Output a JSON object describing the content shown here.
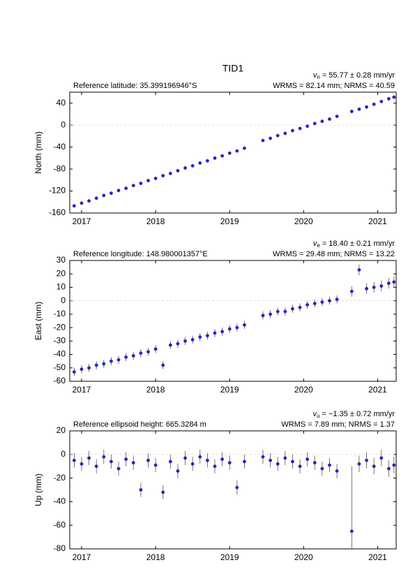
{
  "chart_data": [
    {
      "type": "scatter",
      "title": "TID1",
      "ylabel": "North (mm)",
      "reference": "Reference latitude: 35.399196946°S",
      "rate": {
        "symbol": "v",
        "subscript": "n",
        "text": " = 55.77 ± 0.28 mm/yr"
      },
      "stats": "WRMS = 82.14 mm; NRMS = 40.59",
      "color": "#2020ff",
      "error_color": "#555555",
      "zero_line": true,
      "xlim": [
        2016.84,
        2021.25
      ],
      "xticks": [
        2017,
        2018,
        2019,
        2020,
        2021
      ],
      "ylim": [
        -160,
        60
      ],
      "yticks": [
        -160,
        -120,
        -80,
        -40,
        0,
        40
      ],
      "x": [
        2016.9,
        2017.0,
        2017.1,
        2017.2,
        2017.3,
        2017.4,
        2017.5,
        2017.6,
        2017.7,
        2017.8,
        2017.9,
        2018.0,
        2018.1,
        2018.2,
        2018.3,
        2018.4,
        2018.5,
        2018.6,
        2018.7,
        2018.8,
        2018.9,
        2019.0,
        2019.1,
        2019.2,
        2019.45,
        2019.55,
        2019.65,
        2019.75,
        2019.85,
        2019.95,
        2020.05,
        2020.15,
        2020.25,
        2020.35,
        2020.45,
        2020.65,
        2020.75,
        2020.85,
        2020.95,
        2021.05,
        2021.15,
        2021.22
      ],
      "values": [
        -147,
        -142,
        -138,
        -133,
        -128,
        -124,
        -119,
        -115,
        -110,
        -106,
        -101,
        -97,
        -92,
        -88,
        -83,
        -78,
        -74,
        -69,
        -65,
        -60,
        -56,
        -51,
        -47,
        -42,
        -28,
        -24,
        -19,
        -15,
        -10,
        -6,
        -2,
        3,
        7,
        11,
        16,
        25,
        29,
        33,
        38,
        43,
        48,
        51
      ],
      "errors": [
        2,
        2,
        2,
        2,
        2,
        2,
        2,
        2,
        2,
        2,
        2,
        2,
        2,
        2,
        2,
        2,
        2,
        2,
        2,
        2,
        2,
        2,
        2,
        2,
        2,
        2,
        2,
        2,
        2,
        2,
        2,
        2,
        2,
        2,
        2,
        3,
        3,
        3,
        3,
        3,
        3,
        3
      ]
    },
    {
      "type": "scatter",
      "ylabel": "East (mm)",
      "reference": "Reference longitude: 148.980001357°E",
      "rate": {
        "symbol": "v",
        "subscript": "e",
        "text": " = 18.40 ± 0.21 mm/yr"
      },
      "stats": "WRMS = 29.48 mm; NRMS = 13.22",
      "color": "#2020ff",
      "error_color": "#555555",
      "zero_line": true,
      "xlim": [
        2016.84,
        2021.25
      ],
      "xticks": [
        2017,
        2018,
        2019,
        2020,
        2021
      ],
      "ylim": [
        -60,
        30
      ],
      "yticks": [
        -60,
        -50,
        -40,
        -30,
        -20,
        -10,
        0,
        10,
        20,
        30
      ],
      "x": [
        2016.9,
        2017.0,
        2017.1,
        2017.2,
        2017.3,
        2017.4,
        2017.5,
        2017.6,
        2017.7,
        2017.8,
        2017.9,
        2018.0,
        2018.1,
        2018.2,
        2018.3,
        2018.4,
        2018.5,
        2018.6,
        2018.7,
        2018.8,
        2018.9,
        2019.0,
        2019.1,
        2019.2,
        2019.45,
        2019.55,
        2019.65,
        2019.75,
        2019.85,
        2019.95,
        2020.05,
        2020.15,
        2020.25,
        2020.35,
        2020.45,
        2020.65,
        2020.75,
        2020.85,
        2020.95,
        2021.05,
        2021.15,
        2021.22
      ],
      "values": [
        -53,
        -51,
        -50,
        -48,
        -47,
        -45,
        -44,
        -42,
        -41,
        -39,
        -38,
        -36,
        -48,
        -33,
        -32,
        -30,
        -29,
        -27,
        -26,
        -24,
        -23,
        -21,
        -20,
        -18,
        -11,
        -10,
        -8,
        -8,
        -6,
        -5,
        -3,
        -2,
        -1,
        0,
        1,
        7,
        23,
        9,
        10,
        11,
        13,
        14
      ],
      "errors": [
        3,
        3,
        3,
        3,
        3,
        3,
        3,
        3,
        3,
        3,
        3,
        3,
        3,
        3,
        3,
        3,
        3,
        3,
        3,
        3,
        3,
        3,
        3,
        3,
        3,
        3,
        3,
        3,
        3,
        3,
        3,
        3,
        3,
        3,
        3,
        4,
        4,
        4,
        4,
        4,
        4,
        4
      ]
    },
    {
      "type": "scatter",
      "ylabel": "Up (mm)",
      "reference": "Reference ellipsoid height: 665.3284 m",
      "rate": {
        "symbol": "v",
        "subscript": "u",
        "text": " = −1.35 ± 0.72 mm/yr"
      },
      "stats": "WRMS = 7.89 mm; NRMS = 1.37",
      "color": "#2020ff",
      "error_color": "#555555",
      "zero_line": true,
      "xlim": [
        2016.84,
        2021.25
      ],
      "xticks": [
        2017,
        2018,
        2019,
        2020,
        2021
      ],
      "ylim": [
        -80,
        20
      ],
      "yticks": [
        -80,
        -60,
        -40,
        -20,
        0,
        20
      ],
      "x": [
        2016.9,
        2017.0,
        2017.1,
        2017.2,
        2017.3,
        2017.4,
        2017.5,
        2017.6,
        2017.7,
        2017.8,
        2017.9,
        2018.0,
        2018.1,
        2018.2,
        2018.3,
        2018.4,
        2018.5,
        2018.6,
        2018.7,
        2018.8,
        2018.9,
        2019.0,
        2019.1,
        2019.2,
        2019.45,
        2019.55,
        2019.65,
        2019.75,
        2019.85,
        2019.95,
        2020.05,
        2020.15,
        2020.25,
        2020.35,
        2020.45,
        2020.65,
        2020.75,
        2020.85,
        2020.95,
        2021.05,
        2021.15,
        2021.22
      ],
      "values": [
        -5,
        -8,
        -3,
        -10,
        -2,
        -6,
        -12,
        -4,
        -7,
        -30,
        -5,
        -9,
        -32,
        -6,
        -14,
        -3,
        -8,
        -2,
        -5,
        -10,
        -4,
        -7,
        -28,
        -6,
        -2,
        -5,
        -8,
        -3,
        -6,
        -10,
        -4,
        -7,
        -12,
        -9,
        -14,
        -65,
        -8,
        -5,
        -10,
        -3,
        -12,
        -9
      ],
      "errors": [
        6,
        6,
        6,
        6,
        6,
        6,
        6,
        6,
        6,
        6,
        6,
        6,
        6,
        6,
        6,
        6,
        6,
        6,
        6,
        6,
        6,
        6,
        6,
        6,
        6,
        6,
        6,
        6,
        6,
        6,
        6,
        6,
        6,
        6,
        6,
        55,
        7,
        7,
        7,
        7,
        7,
        7
      ]
    }
  ]
}
